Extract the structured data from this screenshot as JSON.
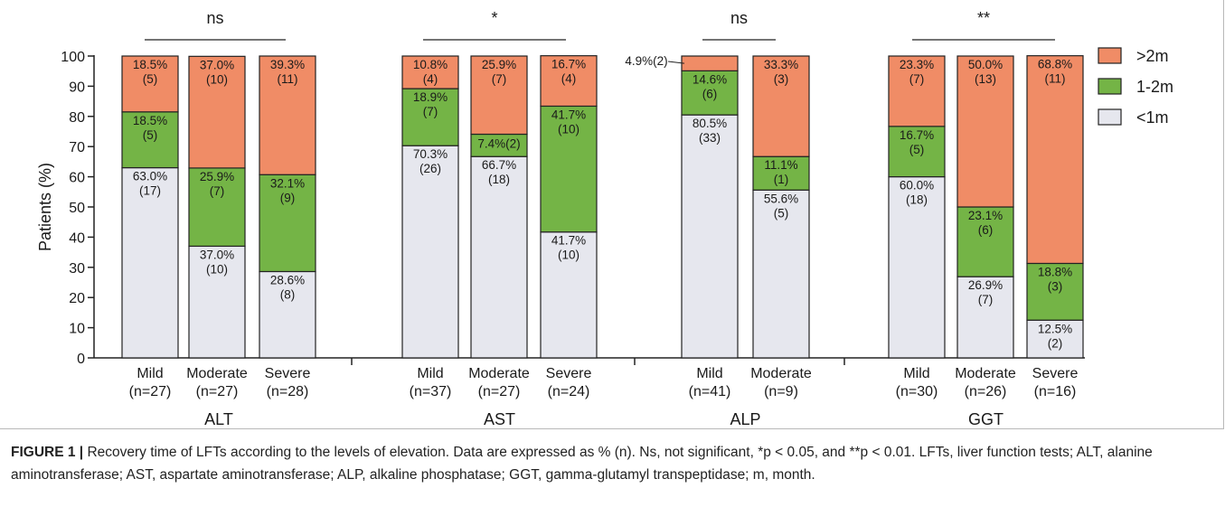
{
  "chart_data": {
    "type": "bar",
    "stacked": true,
    "ylabel": "Patients (%)",
    "ylim": [
      0,
      100
    ],
    "yticks": [
      0,
      10,
      20,
      30,
      40,
      50,
      60,
      70,
      80,
      90,
      100
    ],
    "colors": {
      "<1m": "#e6e7ee",
      "1-2m": "#74b446",
      ">2m": "#f08c66"
    },
    "legend": {
      "position": "right",
      "entries": [
        ">2m",
        "1-2m",
        "<1m"
      ]
    },
    "groups": [
      {
        "name": "ALT",
        "significance": "ns",
        "bars": [
          {
            "category": "Mild",
            "n_label": "(n=27)",
            "segments": [
              {
                "series": "<1m",
                "value": 63.0,
                "label": "63.0%",
                "count": "(17)"
              },
              {
                "series": "1-2m",
                "value": 18.5,
                "label": "18.5%",
                "count": "(5)"
              },
              {
                "series": ">2m",
                "value": 18.5,
                "label": "18.5%",
                "count": "(5)"
              }
            ]
          },
          {
            "category": "Moderate",
            "n_label": "(n=27)",
            "segments": [
              {
                "series": "<1m",
                "value": 37.0,
                "label": "37.0%",
                "count": "(10)"
              },
              {
                "series": "1-2m",
                "value": 25.9,
                "label": "25.9%",
                "count": "(7)"
              },
              {
                "series": ">2m",
                "value": 37.0,
                "label": "37.0%",
                "count": "(10)"
              }
            ]
          },
          {
            "category": "Severe",
            "n_label": "(n=28)",
            "segments": [
              {
                "series": "<1m",
                "value": 28.6,
                "label": "28.6%",
                "count": "(8)"
              },
              {
                "series": "1-2m",
                "value": 32.1,
                "label": "32.1%",
                "count": "(9)"
              },
              {
                "series": ">2m",
                "value": 39.3,
                "label": "39.3%",
                "count": "(11)"
              }
            ]
          }
        ]
      },
      {
        "name": "AST",
        "significance": "*",
        "bars": [
          {
            "category": "Mild",
            "n_label": "(n=37)",
            "segments": [
              {
                "series": "<1m",
                "value": 70.3,
                "label": "70.3%",
                "count": "(26)"
              },
              {
                "series": "1-2m",
                "value": 18.9,
                "label": "18.9%",
                "count": "(7)"
              },
              {
                "series": ">2m",
                "value": 10.8,
                "label": "10.8%",
                "count": "(4)"
              }
            ]
          },
          {
            "category": "Moderate",
            "n_label": "(n=27)",
            "segments": [
              {
                "series": "<1m",
                "value": 66.7,
                "label": "66.7%",
                "count": "(18)"
              },
              {
                "series": "1-2m",
                "value": 7.4,
                "label": "7.4%(2)",
                "count": ""
              },
              {
                "series": ">2m",
                "value": 25.9,
                "label": "25.9%",
                "count": "(7)"
              }
            ]
          },
          {
            "category": "Severe",
            "n_label": "(n=24)",
            "segments": [
              {
                "series": "<1m",
                "value": 41.7,
                "label": "41.7%",
                "count": "(10)"
              },
              {
                "series": "1-2m",
                "value": 41.7,
                "label": "41.7%",
                "count": "(10)"
              },
              {
                "series": ">2m",
                "value": 16.7,
                "label": "16.7%",
                "count": "(4)"
              }
            ]
          }
        ]
      },
      {
        "name": "ALP",
        "significance": "ns",
        "bars": [
          {
            "category": "Mild",
            "n_label": "(n=41)",
            "segments": [
              {
                "series": "<1m",
                "value": 80.5,
                "label": "80.5%",
                "count": "(33)"
              },
              {
                "series": "1-2m",
                "value": 14.6,
                "label": "14.6%",
                "count": "(6)"
              },
              {
                "series": ">2m",
                "value": 4.9,
                "label": "4.9%(2)",
                "count": "",
                "callout": true
              }
            ]
          },
          {
            "category": "Moderate",
            "n_label": "(n=9)",
            "segments": [
              {
                "series": "<1m",
                "value": 55.6,
                "label": "55.6%",
                "count": "(5)"
              },
              {
                "series": "1-2m",
                "value": 11.1,
                "label": "11.1%",
                "count": "(1)"
              },
              {
                "series": ">2m",
                "value": 33.3,
                "label": "33.3%",
                "count": "(3)"
              }
            ]
          }
        ]
      },
      {
        "name": "GGT",
        "significance": "**",
        "bars": [
          {
            "category": "Mild",
            "n_label": "(n=30)",
            "segments": [
              {
                "series": "<1m",
                "value": 60.0,
                "label": "60.0%",
                "count": "(18)"
              },
              {
                "series": "1-2m",
                "value": 16.7,
                "label": "16.7%",
                "count": "(5)"
              },
              {
                "series": ">2m",
                "value": 23.3,
                "label": "23.3%",
                "count": "(7)"
              }
            ]
          },
          {
            "category": "Moderate",
            "n_label": "(n=26)",
            "segments": [
              {
                "series": "<1m",
                "value": 26.9,
                "label": "26.9%",
                "count": "(7)"
              },
              {
                "series": "1-2m",
                "value": 23.1,
                "label": "23.1%",
                "count": "(6)"
              },
              {
                "series": ">2m",
                "value": 50.0,
                "label": "50.0%",
                "count": "(13)"
              }
            ]
          },
          {
            "category": "Severe",
            "n_label": "(n=16)",
            "segments": [
              {
                "series": "<1m",
                "value": 12.5,
                "label": "12.5%",
                "count": "(2)"
              },
              {
                "series": "1-2m",
                "value": 18.8,
                "label": "18.8%",
                "count": "(3)"
              },
              {
                "series": ">2m",
                "value": 68.8,
                "label": "68.8%",
                "count": "(11)"
              }
            ]
          }
        ]
      }
    ]
  },
  "caption": {
    "figure_label": "FIGURE 1 |",
    "text": "Recovery time of LFTs according to the levels of elevation. Data are expressed as % (n). Ns, not significant, *p < 0.05, and **p < 0.01. LFTs, liver function tests; ALT, alanine aminotransferase; AST, aspartate aminotransferase; ALP, alkaline phosphatase; GGT, gamma-glutamyl transpeptidase; m, month."
  }
}
